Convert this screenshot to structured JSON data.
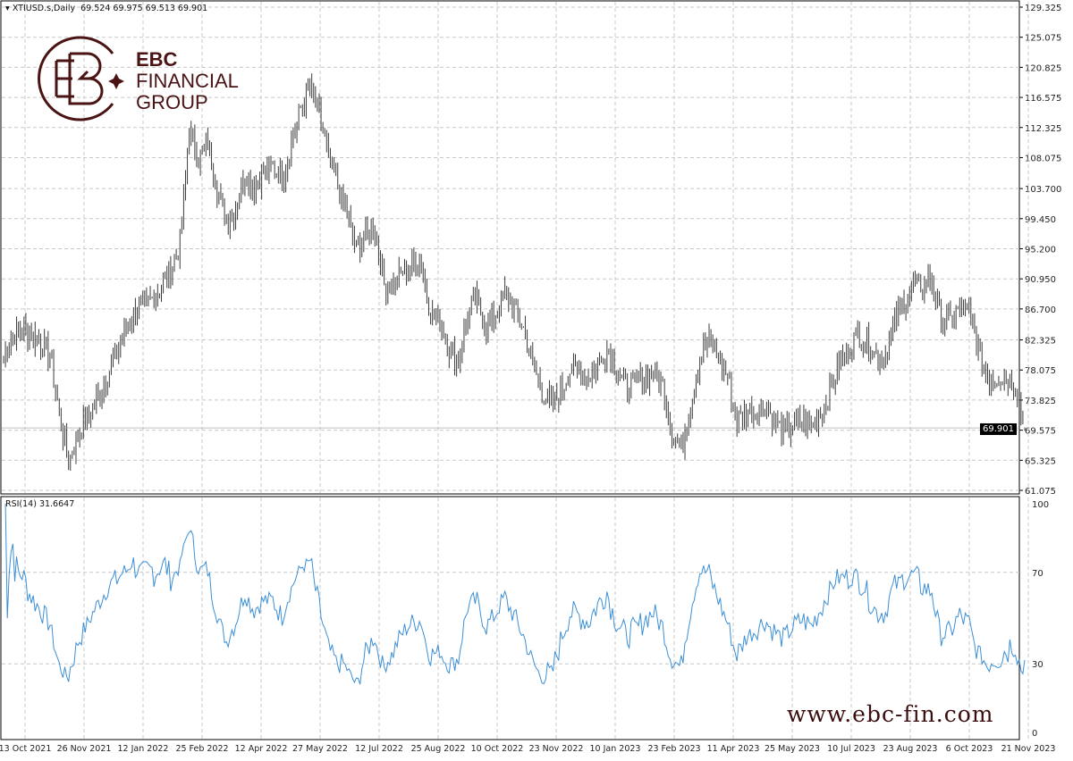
{
  "header": {
    "symbol_label": "XTIUSD.s,Daily",
    "ohlc": "69.524 69.975 69.513 69.901",
    "rsi_label": "RSI(14) 31.6647"
  },
  "logo": {
    "line1": "EBC",
    "line2": "FINANCIAL",
    "line3": "GROUP"
  },
  "watermark_url": "www.ebc-fin.com",
  "current_price_tag": "69.901",
  "colors": {
    "bars": "#3c3c3c",
    "rsi": "#3c8fd6",
    "grid": "#c8c8c8",
    "brand": "#4a1414"
  },
  "chart_data": [
    {
      "type": "ohlc",
      "title": "XTIUSD.s,Daily",
      "y_ticks": [
        "129.325",
        "125.075",
        "120.825",
        "116.575",
        "112.325",
        "108.075",
        "103.700",
        "99.450",
        "95.200",
        "90.950",
        "86.700",
        "82.325",
        "78.075",
        "73.825",
        "69.575",
        "65.325",
        "61.075"
      ],
      "ylim": [
        61.075,
        129.325
      ],
      "x_tick_labels": [
        "13 Oct 2021",
        "26 Nov 2021",
        "12 Jan 2022",
        "25 Feb 2022",
        "12 Apr 2022",
        "27 May 2022",
        "12 Jul 2022",
        "25 Aug 2022",
        "10 Oct 2022",
        "23 Nov 2022",
        "10 Jan 2023",
        "23 Feb 2023",
        "11 Apr 2023",
        "25 May 2023",
        "10 Jul 2023",
        "23 Aug 2023",
        "6 Oct 2023",
        "21 Nov 2023"
      ],
      "weekly_closes": [
        80,
        83,
        84,
        83,
        82,
        80,
        72,
        65,
        69,
        71,
        74,
        77,
        80,
        83,
        86,
        87,
        88,
        90,
        92,
        96,
        112,
        108,
        110,
        104,
        99,
        101,
        106,
        104,
        106,
        107,
        105,
        110,
        115,
        118,
        114,
        108,
        104,
        100,
        95,
        97,
        98,
        90,
        90,
        92,
        93,
        93,
        86,
        85,
        81,
        79,
        86,
        88,
        84,
        86,
        89,
        87,
        84,
        79,
        75,
        73,
        75,
        78,
        78,
        77,
        79,
        81,
        78,
        76,
        76,
        77,
        78,
        76,
        69,
        67,
        73,
        80,
        82,
        80,
        77,
        71,
        72,
        72,
        73,
        71,
        69,
        70,
        71,
        70,
        72,
        75,
        79,
        81,
        83,
        82,
        80,
        80,
        85,
        88,
        90,
        90,
        91,
        85,
        85,
        87,
        86,
        81,
        77,
        77,
        77,
        76,
        70
      ],
      "last": {
        "open": 69.524,
        "high": 69.975,
        "low": 69.513,
        "close": 69.901
      }
    },
    {
      "type": "line",
      "title": "RSI(14)",
      "last_value": 31.6647,
      "ylim": [
        0,
        100
      ],
      "y_ticks": [
        "100",
        "70",
        "30",
        "0"
      ],
      "levels": [
        70,
        30
      ]
    }
  ]
}
